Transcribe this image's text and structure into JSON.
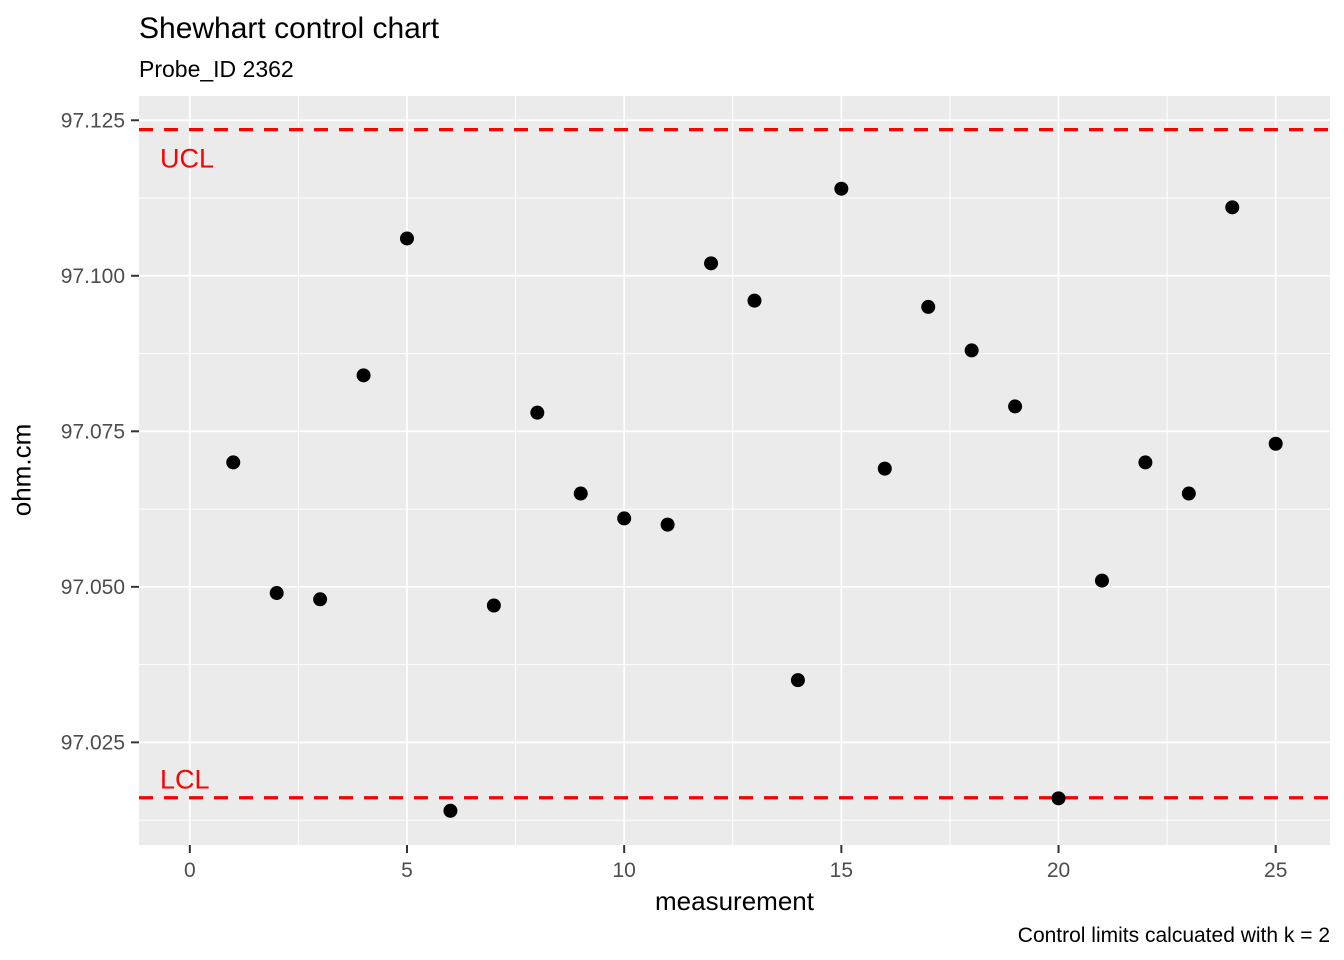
{
  "header": {
    "title": "Shewhart control chart",
    "subtitle": "Probe_ID 2362"
  },
  "caption": "Control limits calcuated with k = 2",
  "chart_data": {
    "type": "scatter",
    "title": "Shewhart control chart",
    "subtitle": "Probe_ID 2362",
    "xlabel": "measurement",
    "ylabel": "ohm.cm",
    "caption": "Control limits calcuated with k = 2",
    "x": [
      1,
      2,
      3,
      4,
      5,
      6,
      7,
      8,
      9,
      10,
      11,
      12,
      13,
      14,
      15,
      16,
      17,
      18,
      19,
      20,
      21,
      22,
      23,
      24,
      25
    ],
    "y": [
      97.07,
      97.049,
      97.048,
      97.084,
      97.106,
      97.014,
      97.047,
      97.078,
      97.065,
      97.061,
      97.06,
      97.102,
      97.096,
      97.035,
      97.114,
      97.069,
      97.095,
      97.088,
      97.079,
      97.016,
      97.051,
      97.07,
      97.065,
      97.111,
      97.073
    ],
    "xlim": [
      -1.17,
      26.25
    ],
    "ylim": [
      97.0085,
      97.1289
    ],
    "x_ticks": [
      0,
      5,
      10,
      15,
      20,
      25
    ],
    "x_tick_labels": [
      "0",
      "5",
      "10",
      "15",
      "20",
      "25"
    ],
    "x_minor": [
      2.5,
      7.5,
      12.5,
      17.5,
      22.5
    ],
    "y_ticks": [
      97.025,
      97.05,
      97.075,
      97.1,
      97.125
    ],
    "y_tick_labels": [
      "97.025",
      "97.050",
      "97.075",
      "97.100",
      "97.125"
    ],
    "y_minor": [
      97.0125,
      97.0375,
      97.0625,
      97.0875,
      97.1125
    ],
    "control_lines": [
      {
        "label": "UCL",
        "value": 97.1235,
        "label_side": "below"
      },
      {
        "label": "LCL",
        "value": 97.0161,
        "label_side": "above"
      }
    ],
    "k": 2,
    "grid": true,
    "legend": false,
    "colors": {
      "point": "#000000",
      "control_line": "#FF0000",
      "panel_bg": "#EBEBEB",
      "grid_line": "#FFFFFF",
      "tick_text": "#4D4D4D",
      "tick_mark": "#333333"
    }
  }
}
